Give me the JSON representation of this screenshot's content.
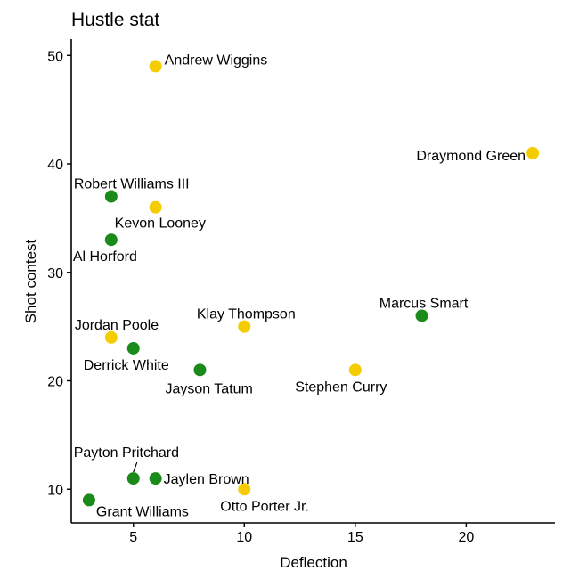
{
  "chart_data": {
    "type": "scatter",
    "title": "Hustle stat",
    "xlabel": "Deflection",
    "ylabel": "Shot contest",
    "xlim": [
      2.2,
      24
    ],
    "ylim": [
      6.9,
      51.5
    ],
    "xticks": [
      5,
      10,
      15,
      20
    ],
    "yticks": [
      10,
      20,
      30,
      40,
      50
    ],
    "grid": false,
    "legend": "none",
    "colors": {
      "green": "#1a8a1a",
      "gold": "#f5cc00"
    },
    "points": [
      {
        "label": "Andrew Wiggins",
        "x": 6,
        "y": 49,
        "color": "gold",
        "anchor": "start",
        "dx": 10,
        "dy": -2
      },
      {
        "label": "Draymond Green",
        "x": 23,
        "y": 41,
        "color": "gold",
        "anchor": "end",
        "dx": -8,
        "dy": 8
      },
      {
        "label": "Robert Williams III",
        "x": 4,
        "y": 37,
        "color": "green",
        "anchor": "start",
        "dx": -42,
        "dy": -9
      },
      {
        "label": "Kevon Looney",
        "x": 6,
        "y": 36,
        "color": "gold",
        "anchor": "start",
        "dx": -46,
        "dy": 23
      },
      {
        "label": "Al Horford",
        "x": 4,
        "y": 33,
        "color": "green",
        "anchor": "start",
        "dx": -43,
        "dy": 24
      },
      {
        "label": "Marcus Smart",
        "x": 18,
        "y": 26,
        "color": "green",
        "anchor": "middle",
        "dx": 2,
        "dy": -9
      },
      {
        "label": "Klay Thompson",
        "x": 10,
        "y": 25,
        "color": "gold",
        "anchor": "middle",
        "dx": 2,
        "dy": -9
      },
      {
        "label": "Jordan Poole",
        "x": 4,
        "y": 24,
        "color": "gold",
        "anchor": "start",
        "dx": -41,
        "dy": -9
      },
      {
        "label": "Derrick White",
        "x": 5,
        "y": 23,
        "color": "green",
        "anchor": "middle",
        "dx": -8,
        "dy": 24
      },
      {
        "label": "Jayson Tatum",
        "x": 8,
        "y": 21,
        "color": "green",
        "anchor": "start",
        "dx": -39,
        "dy": 26
      },
      {
        "label": "Stephen Curry",
        "x": 15,
        "y": 21,
        "color": "gold",
        "anchor": "middle",
        "dx": -16,
        "dy": 24
      },
      {
        "label": "Payton Pritchard",
        "x": 5,
        "y": 11,
        "color": "green",
        "anchor": "start",
        "dx": -67,
        "dy": -24,
        "leader": true
      },
      {
        "label": "Jaylen Brown",
        "x": 6,
        "y": 11,
        "color": "green",
        "anchor": "start",
        "dx": 9,
        "dy": 6
      },
      {
        "label": "Otto Porter Jr.",
        "x": 10,
        "y": 10,
        "color": "gold",
        "anchor": "start",
        "dx": -27,
        "dy": 24
      },
      {
        "label": "Grant Williams",
        "x": 3,
        "y": 9,
        "color": "green",
        "anchor": "start",
        "dx": 8,
        "dy": 18
      }
    ]
  }
}
